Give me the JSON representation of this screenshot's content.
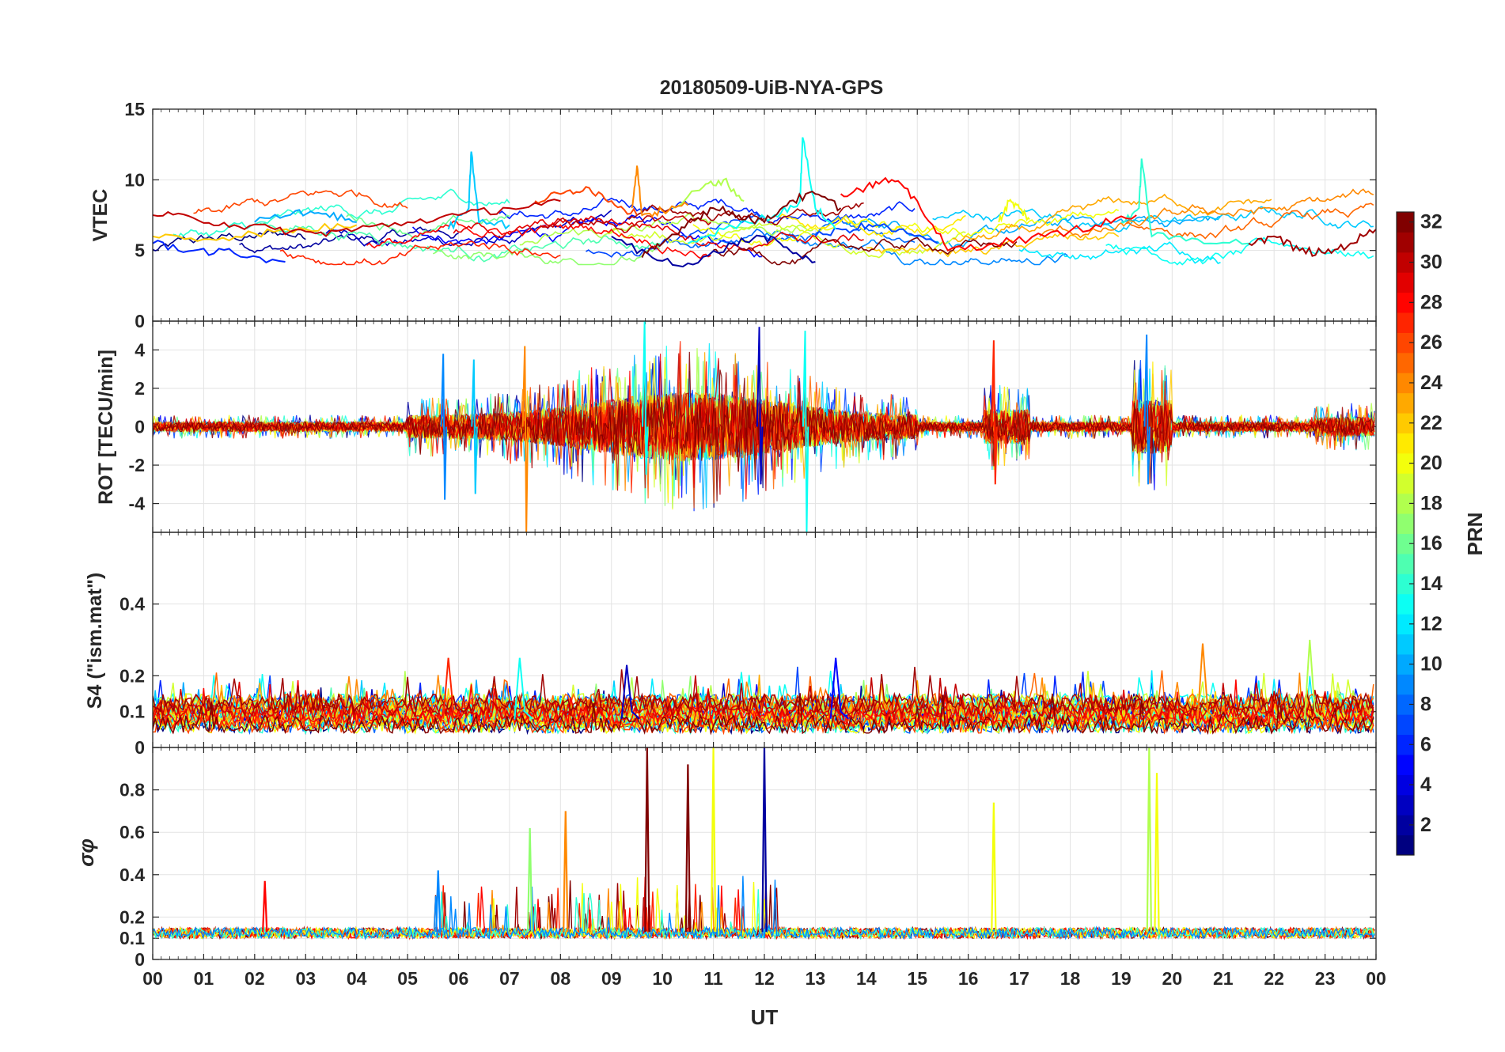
{
  "chart_data": {
    "type": "line",
    "title": "20180509-UiB-NYA-GPS",
    "xlabel": "UT",
    "x_tick_labels": [
      "00",
      "01",
      "02",
      "03",
      "04",
      "05",
      "06",
      "07",
      "08",
      "09",
      "10",
      "11",
      "12",
      "13",
      "14",
      "15",
      "16",
      "17",
      "18",
      "19",
      "20",
      "21",
      "22",
      "23",
      "00"
    ],
    "x_range_hours": [
      0,
      24
    ],
    "grid": true,
    "panels": [
      {
        "id": "vtec",
        "ylabel": "VTEC",
        "ylim": [
          0,
          15
        ],
        "y_ticks": [
          0,
          5,
          10,
          15
        ],
        "y_tick_labels": [
          "0",
          "5",
          "10",
          "15"
        ],
        "description_values": "VTEC per PRN mostly 4-9 TECU, peaks near 12 at 06 UT, ~13 at 12.7 UT, ~11.5 at 19.4 UT",
        "series": [
          {
            "name": "PRN 2",
            "prn": 2,
            "x": [
              9.0,
              9.8,
              10.6,
              11.4,
              12.0,
              12.5,
              13.0
            ],
            "values": [
              6.0,
              4.5,
              4.0,
              5.5,
              6.0,
              5.0,
              4.2
            ]
          },
          {
            "name": "PRN 6",
            "prn": 6,
            "x": [
              0.0,
              0.8,
              1.6,
              2.6
            ],
            "values": [
              5.5,
              5.0,
              4.8,
              4.2
            ]
          },
          {
            "name": "PRN 7",
            "prn": 7,
            "x": [
              13.0,
              13.6,
              14.2,
              14.8,
              15.4
            ],
            "values": [
              6.0,
              6.5,
              6.8,
              6.2,
              5.5
            ]
          },
          {
            "name": "PRN 10",
            "prn": 10,
            "x": [
              2.0,
              2.8,
              3.4,
              4.0
            ],
            "values": [
              7.0,
              7.8,
              7.6,
              7.0
            ]
          },
          {
            "name": "PRN 11",
            "prn": 11,
            "x": [
              5.8,
              6.2,
              6.25,
              6.4,
              7.0
            ],
            "values": [
              6.5,
              8.0,
              12.0,
              7.0,
              6.8
            ]
          },
          {
            "name": "PRN 13",
            "prn": 13,
            "x": [
              10.5,
              11.2,
              12.2,
              12.7,
              12.75,
              13.0,
              13.4
            ],
            "values": [
              5.5,
              6.5,
              7.5,
              8.5,
              13.0,
              8.0,
              6.5
            ]
          },
          {
            "name": "PRN 14",
            "prn": 14,
            "x": [
              19.0,
              19.35,
              19.4,
              19.6,
              20.5,
              21.5
            ],
            "values": [
              7.0,
              8.0,
              11.5,
              6.0,
              5.8,
              5.5
            ]
          },
          {
            "name": "PRN 18",
            "prn": 18,
            "x": [
              10.2,
              10.8,
              11.2,
              11.6
            ],
            "values": [
              8.0,
              9.5,
              10.0,
              8.5
            ]
          },
          {
            "name": "PRN 20",
            "prn": 20,
            "x": [
              16.6,
              16.8,
              17.0,
              17.2
            ],
            "values": [
              7.0,
              8.5,
              8.0,
              7.2
            ]
          },
          {
            "name": "PRN 22",
            "prn": 22,
            "x": [
              0.0,
              1.0,
              2.0,
              3.0,
              4.0
            ],
            "values": [
              6.0,
              5.8,
              6.2,
              6.5,
              6.8
            ]
          },
          {
            "name": "PRN 24",
            "prn": 24,
            "x": [
              9.4,
              9.5,
              9.6,
              10.0,
              10.5
            ],
            "values": [
              8.0,
              11.0,
              7.5,
              7.8,
              8.2
            ]
          },
          {
            "name": "PRN 26",
            "prn": 26,
            "x": [
              7.5,
              8.0,
              8.5,
              9.0,
              9.5
            ],
            "values": [
              8.5,
              9.0,
              9.5,
              8.5,
              7.5
            ]
          },
          {
            "name": "PRN 28",
            "prn": 28,
            "x": [
              13.5,
              14.0,
              14.5,
              15.0,
              15.6,
              16.5,
              17.5,
              18.5,
              19.3
            ],
            "values": [
              9.0,
              9.5,
              10.0,
              8.5,
              5.0,
              5.5,
              6.0,
              6.8,
              7.5
            ]
          },
          {
            "name": "PRN 30",
            "prn": 30,
            "x": [
              0.0,
              0.8,
              1.6,
              2.4,
              3.2,
              4.0,
              5.0,
              6.0,
              7.0,
              8.0
            ],
            "values": [
              7.5,
              7.3,
              6.8,
              6.5,
              6.2,
              6.5,
              7.0,
              7.5,
              8.0,
              8.5
            ]
          },
          {
            "name": "PRN 32",
            "prn": 32,
            "x": [
              9.6,
              10.0,
              10.5,
              11.0,
              11.5,
              12.0,
              12.5,
              13.0,
              13.5
            ],
            "values": [
              4.5,
              5.5,
              7.0,
              8.0,
              7.5,
              7.0,
              8.5,
              9.0,
              8.0
            ]
          },
          {
            "name": "PRN 31",
            "prn": 31,
            "x": [
              21.5,
              22.0,
              22.5,
              23.0,
              23.5,
              24.0
            ],
            "values": [
              5.5,
              6.0,
              5.0,
              4.8,
              5.5,
              6.5
            ]
          }
        ]
      },
      {
        "id": "rot",
        "ylabel": "ROT [TECU/min]",
        "ylim": [
          -5.5,
          5.5
        ],
        "y_ticks": [
          -4,
          -2,
          0,
          2,
          4
        ],
        "y_tick_labels": [
          "-4",
          "-2",
          "0",
          "2",
          "4"
        ],
        "description_values": "ROT near 0 with bursts up to about +/-5 TECU/min between 05 and 15 UT and near 19.5 UT",
        "spikes": [
          {
            "x": 5.7,
            "values": [
              3.8,
              -3.8
            ],
            "prn": 9
          },
          {
            "x": 6.3,
            "values": [
              3.5,
              -3.5
            ],
            "prn": 11
          },
          {
            "x": 7.3,
            "values": [
              4.2,
              -5.5
            ],
            "prn": 24
          },
          {
            "x": 9.65,
            "values": [
              5.5,
              -2.5
            ],
            "prn": 13
          },
          {
            "x": 11.9,
            "values": [
              5.2,
              -3.0
            ],
            "prn": 3
          },
          {
            "x": 12.8,
            "values": [
              5.0,
              -5.5
            ],
            "prn": 13
          },
          {
            "x": 16.5,
            "values": [
              4.5,
              -3.0
            ],
            "prn": 27
          },
          {
            "x": 19.5,
            "values": [
              4.8,
              -3.0
            ],
            "prn": 9
          }
        ]
      },
      {
        "id": "s4",
        "ylabel": "S4 (\"ism.mat\")",
        "ylim": [
          0,
          0.6
        ],
        "y_ticks": [
          0,
          0.1,
          0.2,
          0.4
        ],
        "y_tick_labels": [
          "0",
          "0.1",
          "0.2",
          "0.4"
        ],
        "description_values": "S4 mostly 0.03-0.15 with peaks up to 0.25-0.3",
        "peaks": [
          {
            "x": 5.8,
            "value": 0.25,
            "prn": 27
          },
          {
            "x": 7.2,
            "value": 0.25,
            "prn": 13
          },
          {
            "x": 9.3,
            "value": 0.23,
            "prn": 3
          },
          {
            "x": 13.4,
            "value": 0.25,
            "prn": 5
          },
          {
            "x": 20.6,
            "value": 0.29,
            "prn": 24
          },
          {
            "x": 22.7,
            "value": 0.3,
            "prn": 18
          }
        ]
      },
      {
        "id": "sigma_phi",
        "ylabel": "σφ",
        "ylim": [
          0,
          1.0
        ],
        "y_ticks": [
          0,
          0.1,
          0.2,
          0.4,
          0.6,
          0.8
        ],
        "y_tick_labels": [
          "0",
          "0.1",
          "0.2",
          "0.4",
          "0.6",
          "0.8"
        ],
        "description_values": "sigma phi baseline ~0.12 with spikes up to 1.0",
        "spikes": [
          {
            "x": 2.2,
            "value": 0.37,
            "prn": 28
          },
          {
            "x": 5.6,
            "value": 0.42,
            "prn": 9
          },
          {
            "x": 7.4,
            "value": 0.62,
            "prn": 17
          },
          {
            "x": 8.1,
            "value": 0.7,
            "prn": 24
          },
          {
            "x": 9.7,
            "value": 1.0,
            "prn": 32
          },
          {
            "x": 10.5,
            "value": 0.92,
            "prn": 32
          },
          {
            "x": 11.0,
            "value": 1.0,
            "prn": 20
          },
          {
            "x": 12.0,
            "value": 1.0,
            "prn": 2
          },
          {
            "x": 16.5,
            "value": 0.74,
            "prn": 20
          },
          {
            "x": 19.55,
            "value": 1.0,
            "prn": 18
          },
          {
            "x": 19.7,
            "value": 0.88,
            "prn": 20
          }
        ]
      }
    ],
    "colorbar": {
      "label": "PRN",
      "range": [
        1,
        32
      ],
      "tick_labels": [
        "2",
        "4",
        "6",
        "8",
        "10",
        "12",
        "14",
        "16",
        "18",
        "20",
        "22",
        "24",
        "26",
        "28",
        "30",
        "32"
      ],
      "colormap": "jet"
    }
  }
}
